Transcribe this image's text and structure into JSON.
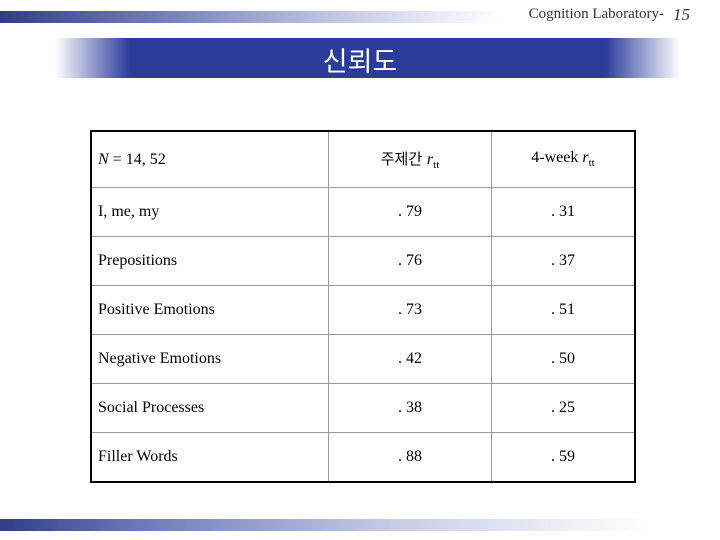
{
  "header": {
    "lab_name": "Cognition Laboratory-",
    "page_number": "15"
  },
  "slide": {
    "title": "신뢰도"
  },
  "table": {
    "header": {
      "n_label": "N",
      "n_value": " = 14, 52",
      "col2_korean": "주제간 ",
      "col2_r": "r",
      "col2_sub": "tt",
      "col3_prefix": "4-week ",
      "col3_r": "r",
      "col3_sub": "tt"
    },
    "rows": [
      {
        "label": "I, me, my",
        "between": ". 79",
        "week4": ". 31"
      },
      {
        "label": "Prepositions",
        "between": ". 76",
        "week4": ". 37"
      },
      {
        "label": "Positive Emotions",
        "between": ". 73",
        "week4": ". 51"
      },
      {
        "label": "Negative Emotions",
        "between": ". 42",
        "week4": ". 50"
      },
      {
        "label": "Social Processes",
        "between": ". 38",
        "week4": ". 25"
      },
      {
        "label": "Filler Words",
        "between": ". 88",
        "week4": ". 59"
      }
    ]
  }
}
